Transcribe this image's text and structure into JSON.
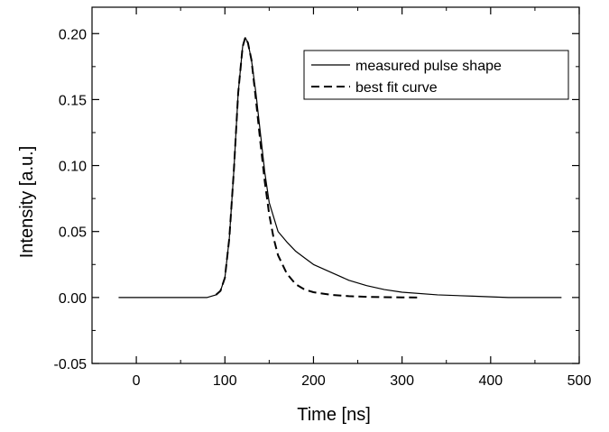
{
  "chart_data": {
    "type": "line",
    "xlabel": "Time [ns]",
    "ylabel": "Intensity [a.u.]",
    "xlim": [
      -50,
      500
    ],
    "ylim": [
      -0.05,
      0.22
    ],
    "x_ticks": [
      0,
      100,
      200,
      300,
      400,
      500
    ],
    "x_tick_labels": [
      "0",
      "100",
      "200",
      "300",
      "400",
      "500"
    ],
    "y_ticks": [
      -0.05,
      0.0,
      0.05,
      0.1,
      0.15,
      0.2
    ],
    "y_tick_labels": [
      "-0.05",
      "0.00",
      "0.05",
      "0.10",
      "0.15",
      "0.20"
    ],
    "grid": false,
    "legend_position": "top-right",
    "series": [
      {
        "name": "measured pulse shape",
        "style": "solid",
        "color": "#000000",
        "x": [
          -20,
          0,
          20,
          40,
          60,
          80,
          90,
          95,
          100,
          105,
          110,
          115,
          120,
          123,
          126,
          130,
          135,
          140,
          145,
          150,
          160,
          170,
          180,
          190,
          200,
          220,
          240,
          260,
          280,
          300,
          340,
          380,
          420,
          460,
          480
        ],
        "y": [
          0.0,
          0.0,
          0.0,
          0.0,
          0.0,
          0.0,
          0.002,
          0.005,
          0.015,
          0.045,
          0.095,
          0.155,
          0.19,
          0.197,
          0.193,
          0.18,
          0.155,
          0.125,
          0.095,
          0.072,
          0.05,
          0.042,
          0.035,
          0.03,
          0.025,
          0.019,
          0.013,
          0.009,
          0.006,
          0.004,
          0.002,
          0.001,
          0.0,
          0.0,
          0.0
        ]
      },
      {
        "name": "best fit curve",
        "style": "dashed",
        "color": "#000000",
        "x": [
          90,
          95,
          100,
          105,
          110,
          115,
          120,
          123,
          126,
          130,
          135,
          140,
          145,
          150,
          155,
          160,
          170,
          180,
          190,
          200,
          220,
          240,
          260,
          280,
          300,
          320
        ],
        "y": [
          0.002,
          0.005,
          0.015,
          0.045,
          0.095,
          0.155,
          0.19,
          0.197,
          0.193,
          0.18,
          0.15,
          0.118,
          0.088,
          0.063,
          0.045,
          0.032,
          0.018,
          0.01,
          0.006,
          0.004,
          0.002,
          0.001,
          0.0005,
          0.0002,
          0.0001,
          0.0
        ]
      }
    ]
  }
}
